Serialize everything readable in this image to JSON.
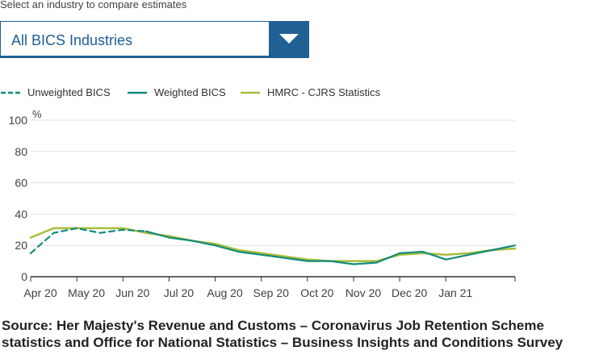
{
  "selector": {
    "label": "Select an industry to compare estimates",
    "selected": "All BICS Industries",
    "dropdown_icon": "chevron-down-icon"
  },
  "colors": {
    "unweighted": "#118c7b",
    "weighted": "#118c7b",
    "hmrc": "#a8bd3a",
    "axis": "#323132",
    "grid": "#e0e0e0",
    "accent": "#206095"
  },
  "chart_data": {
    "type": "line",
    "title": "",
    "ylabel": "%",
    "xlabel": "",
    "ylim": [
      0,
      100
    ],
    "yticks": [
      0,
      20,
      40,
      60,
      80,
      100
    ],
    "grid": true,
    "legend_position": "top-left",
    "x_range": [
      0,
      10.5
    ],
    "tick_labels": [
      "Apr 20",
      "May 20",
      "Jun 20",
      "Jul 20",
      "Aug 20",
      "Sep 20",
      "Oct 20",
      "Nov 20",
      "Dec 20",
      "Jan 21"
    ],
    "series": [
      {
        "name": "Unweighted BICS",
        "style": "dashed",
        "points": [
          [
            0,
            15
          ],
          [
            0.5,
            28
          ],
          [
            1,
            31
          ],
          [
            1.5,
            28
          ],
          [
            2,
            30
          ],
          [
            2.5,
            29
          ]
        ]
      },
      {
        "name": "Weighted BICS",
        "style": "solid",
        "points": [
          [
            2.5,
            29
          ],
          [
            3,
            25
          ],
          [
            3.5,
            23
          ],
          [
            4,
            20
          ],
          [
            4.5,
            16
          ],
          [
            5,
            14
          ],
          [
            5.5,
            12
          ],
          [
            6,
            10
          ],
          [
            6.5,
            10
          ],
          [
            7,
            8
          ],
          [
            7.5,
            9
          ],
          [
            8,
            15
          ],
          [
            8.5,
            16
          ],
          [
            9,
            11
          ],
          [
            9.5,
            14
          ],
          [
            10,
            17
          ],
          [
            10.5,
            20
          ]
        ]
      },
      {
        "name": "HMRC - CJRS Statistics",
        "style": "solid",
        "points": [
          [
            0,
            25
          ],
          [
            0.5,
            31
          ],
          [
            1,
            31
          ],
          [
            1.5,
            31
          ],
          [
            2,
            31
          ],
          [
            2.5,
            28
          ],
          [
            3,
            26
          ],
          [
            3.5,
            23
          ],
          [
            4,
            21
          ],
          [
            4.5,
            17
          ],
          [
            5,
            15
          ],
          [
            5.5,
            13
          ],
          [
            6,
            11
          ],
          [
            6.5,
            10
          ],
          [
            7,
            10
          ],
          [
            7.5,
            10
          ],
          [
            8,
            14
          ],
          [
            8.5,
            15
          ],
          [
            9,
            14
          ],
          [
            9.5,
            15
          ],
          [
            10,
            17
          ],
          [
            10.5,
            18
          ]
        ]
      }
    ]
  },
  "source": "Source: Her Majesty's Revenue and Customs – Coronavirus Job Retention Scheme statistics and Office for National Statistics – Business Insights and Conditions Survey"
}
